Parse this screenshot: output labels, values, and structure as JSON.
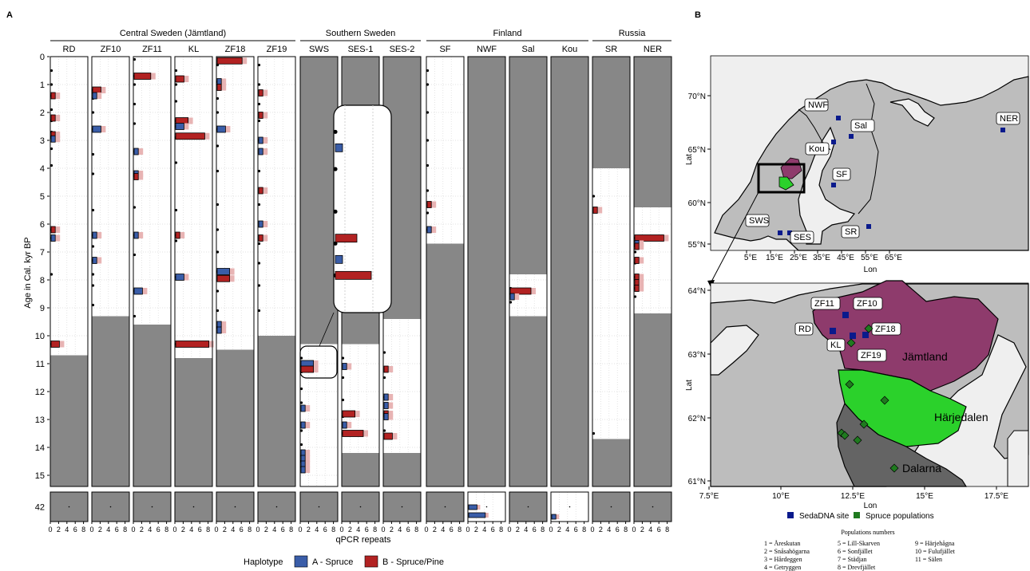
{
  "chart_data": [
    {
      "type": "bar",
      "panel_label": "A",
      "ylabel": "Age in Cal. kyr BP",
      "xlabel": "qPCR repeats",
      "y_ticks": [
        "0",
        "1",
        "2",
        "3",
        "4",
        "5",
        "6",
        "7",
        "8",
        "9",
        "10",
        "11",
        "12",
        "13",
        "14",
        "15"
      ],
      "y_bottom_tick": "42",
      "x_ticks": [
        "0",
        "2",
        "4",
        "6",
        "8"
      ],
      "regions": [
        {
          "name": "Central Sweden (Jämtland)",
          "sites": [
            "RD",
            "ZF10",
            "ZF11",
            "KL",
            "ZF18",
            "ZF19"
          ]
        },
        {
          "name": "Southern Sweden",
          "sites": [
            "SWS",
            "SES-1",
            "SES-2"
          ]
        },
        {
          "name": "Finland",
          "sites": [
            "SF",
            "NWF",
            "Sal",
            "Kou"
          ]
        },
        {
          "name": "Russia",
          "sites": [
            "SR",
            "NER"
          ]
        }
      ],
      "legend": {
        "title": "Haplotype",
        "items": [
          {
            "label": "A - Spruce",
            "color": "#3A5DA8"
          },
          {
            "label": "B - Spruce/Pine",
            "color": "#B22222"
          }
        ]
      },
      "colors": {
        "A": "#3A5DA8",
        "B": "#B22222",
        "no_data": "#878787",
        "ghost": "#E8B4B4"
      },
      "series": [
        {
          "site": "RD",
          "no_data_from": 10.7,
          "bottom_no_data": true,
          "samples": [
            0.5,
            1.0,
            1.4,
            1.9,
            2.3,
            2.7,
            2.9,
            3.3,
            3.9,
            6.2,
            6.5,
            7.8,
            10.3
          ],
          "bars": [
            {
              "age": 1.4,
              "hap": "B",
              "n": 1
            },
            {
              "age": 2.2,
              "hap": "B",
              "n": 1
            },
            {
              "age": 2.8,
              "hap": "B",
              "n": 1
            },
            {
              "age": 2.95,
              "hap": "A",
              "n": 1
            },
            {
              "age": 6.2,
              "hap": "B",
              "n": 1
            },
            {
              "age": 6.5,
              "hap": "A",
              "n": 1
            },
            {
              "age": 10.3,
              "hap": "B",
              "n": 2
            }
          ]
        },
        {
          "site": "ZF10",
          "no_data_from": 9.3,
          "bottom_no_data": true,
          "samples": [
            1.2,
            1.5,
            2.0,
            2.6,
            3.5,
            4.2,
            5.5,
            6.4,
            6.8,
            7.3,
            7.8,
            8.2,
            8.9
          ],
          "bars": [
            {
              "age": 1.2,
              "hap": "B",
              "n": 2
            },
            {
              "age": 1.4,
              "hap": "A",
              "n": 1
            },
            {
              "age": 2.6,
              "hap": "A",
              "n": 2
            },
            {
              "age": 6.4,
              "hap": "A",
              "n": 1
            },
            {
              "age": 7.3,
              "hap": "A",
              "n": 1
            }
          ]
        },
        {
          "site": "ZF11",
          "no_data_from": 9.6,
          "bottom_no_data": true,
          "samples": [
            0.1,
            0.7,
            1.0,
            1.7,
            2.4,
            3.4,
            4.2,
            5.4,
            6.4,
            7.1,
            8.4,
            9.3
          ],
          "bars": [
            {
              "age": 0.7,
              "hap": "B",
              "n": 4
            },
            {
              "age": 3.4,
              "hap": "A",
              "n": 1
            },
            {
              "age": 4.2,
              "hap": "A",
              "n": 1
            },
            {
              "age": 4.3,
              "hap": "B",
              "n": 1
            },
            {
              "age": 6.4,
              "hap": "A",
              "n": 1
            },
            {
              "age": 8.4,
              "hap": "A",
              "n": 2
            }
          ]
        },
        {
          "site": "KL",
          "no_data_from": 10.8,
          "bottom_no_data": true,
          "samples": [
            0.5,
            1.0,
            1.6,
            2.3,
            2.5,
            2.9,
            3.8,
            5.5,
            6.4,
            6.6,
            7.9,
            10.3
          ],
          "bars": [
            {
              "age": 0.8,
              "hap": "B",
              "n": 2
            },
            {
              "age": 2.3,
              "hap": "B",
              "n": 3
            },
            {
              "age": 2.5,
              "hap": "A",
              "n": 2
            },
            {
              "age": 2.85,
              "hap": "B",
              "n": 7
            },
            {
              "age": 6.4,
              "hap": "B",
              "n": 1
            },
            {
              "age": 7.9,
              "hap": "A",
              "n": 2
            },
            {
              "age": 10.3,
              "hap": "B",
              "n": 8
            }
          ]
        },
        {
          "site": "ZF18",
          "no_data_from": 10.5,
          "bottom_no_data": true,
          "samples": [
            0.3,
            0.9,
            1.5,
            2.0,
            2.6,
            3.2,
            4.1,
            5.3,
            6.2,
            7.0,
            7.7,
            8.4,
            9.1,
            9.7
          ],
          "bars": [
            {
              "age": 0.15,
              "hap": "B",
              "n": 6
            },
            {
              "age": 0.9,
              "hap": "A",
              "n": 1
            },
            {
              "age": 1.1,
              "hap": "B",
              "n": 1
            },
            {
              "age": 2.6,
              "hap": "A",
              "n": 2
            },
            {
              "age": 7.7,
              "hap": "A",
              "n": 3
            },
            {
              "age": 7.95,
              "hap": "B",
              "n": 3
            },
            {
              "age": 9.6,
              "hap": "A",
              "n": 1
            },
            {
              "age": 9.8,
              "hap": "A",
              "n": 1
            }
          ]
        },
        {
          "site": "ZF19",
          "no_data_from": 10.0,
          "bottom_no_data": true,
          "samples": [
            0.3,
            1.0,
            1.7,
            2.3,
            3.0,
            4.1,
            5.3,
            6.7,
            7.4,
            8.2,
            9.1
          ],
          "bars": [
            {
              "age": 1.3,
              "hap": "B",
              "n": 1
            },
            {
              "age": 2.1,
              "hap": "B",
              "n": 1
            },
            {
              "age": 3.0,
              "hap": "A",
              "n": 1
            },
            {
              "age": 3.4,
              "hap": "A",
              "n": 1
            },
            {
              "age": 4.8,
              "hap": "B",
              "n": 1
            },
            {
              "age": 6.0,
              "hap": "A",
              "n": 1
            },
            {
              "age": 6.5,
              "hap": "B",
              "n": 1
            }
          ]
        },
        {
          "site": "SWS",
          "no_data_to": 10.3,
          "bottom_no_data": true,
          "samples": [
            10.8,
            11.3,
            11.9,
            12.4,
            13.4,
            13.9,
            14.5
          ],
          "bars": [
            {
              "age": 11.0,
              "hap": "A",
              "n": 3
            },
            {
              "age": 11.2,
              "hap": "B",
              "n": 3
            },
            {
              "age": 12.6,
              "hap": "A",
              "n": 1
            },
            {
              "age": 13.2,
              "hap": "A",
              "n": 1
            },
            {
              "age": 14.2,
              "hap": "A",
              "n": 1
            },
            {
              "age": 14.4,
              "hap": "A",
              "n": 1
            },
            {
              "age": 14.6,
              "hap": "A",
              "n": 1
            },
            {
              "age": 14.8,
              "hap": "A",
              "n": 1
            }
          ]
        },
        {
          "site": "SES-1",
          "no_data_to": 10.3,
          "no_data_from": 14.2,
          "bottom_no_data": true,
          "samples": [
            10.8,
            11.5,
            12.3,
            12.9,
            13.5
          ],
          "bars": [
            {
              "age": 11.1,
              "hap": "A",
              "n": 1
            },
            {
              "age": 12.8,
              "hap": "B",
              "n": 3
            },
            {
              "age": 13.2,
              "hap": "A",
              "n": 1
            },
            {
              "age": 13.5,
              "hap": "B",
              "n": 5
            }
          ]
        },
        {
          "site": "SES-2",
          "no_data_to": 9.4,
          "no_data_from": 14.2,
          "bottom_no_data": true,
          "samples": [
            10.6,
            11.5,
            12.2,
            12.8,
            13.4
          ],
          "bars": [
            {
              "age": 11.2,
              "hap": "B",
              "n": 1
            },
            {
              "age": 12.2,
              "hap": "A",
              "n": 1
            },
            {
              "age": 12.5,
              "hap": "A",
              "n": 1
            },
            {
              "age": 12.8,
              "hap": "B",
              "n": 1
            },
            {
              "age": 12.9,
              "hap": "A",
              "n": 1
            },
            {
              "age": 13.6,
              "hap": "B",
              "n": 2
            }
          ]
        },
        {
          "site": "SF",
          "no_data_from": 6.7,
          "bottom_no_data": true,
          "samples": [
            0.5,
            1.0,
            2.0,
            3.0,
            3.9,
            4.8,
            5.6,
            6.2
          ],
          "bars": [
            {
              "age": 5.3,
              "hap": "B",
              "n": 1
            },
            {
              "age": 6.2,
              "hap": "A",
              "n": 1
            }
          ]
        },
        {
          "site": "NWF",
          "no_data_to": 15.4,
          "bottom_no_data": false,
          "samples": [],
          "bars": [
            {
              "age": 42.0,
              "hap": "A",
              "n": 2
            },
            {
              "age": 42.2,
              "hap": "A",
              "n": 4
            }
          ]
        },
        {
          "site": "Sal",
          "no_data_to": 7.8,
          "no_data_from": 9.3,
          "bottom_no_data": true,
          "samples": [
            8.3,
            8.8
          ],
          "bars": [
            {
              "age": 8.4,
              "hap": "B",
              "n": 5
            },
            {
              "age": 8.6,
              "hap": "A",
              "n": 1
            }
          ]
        },
        {
          "site": "Kou",
          "no_data_to": 15.4,
          "bottom_no_data": false,
          "samples": [],
          "bars": [
            {
              "age": 42.3,
              "hap": "A",
              "n": 1
            }
          ]
        },
        {
          "site": "SR",
          "no_data_to": 4.0,
          "no_data_from": 13.7,
          "bottom_no_data": true,
          "samples": [
            5.0,
            13.5
          ],
          "bars": [
            {
              "age": 5.5,
              "hap": "B",
              "n": 1
            }
          ]
        },
        {
          "site": "NER",
          "no_data_to": 5.4,
          "no_data_from": 9.2,
          "bottom_no_data": true,
          "samples": [
            6.5,
            7.0,
            7.4,
            7.9,
            8.3,
            8.6
          ],
          "bars": [
            {
              "age": 6.5,
              "hap": "B",
              "n": 7
            },
            {
              "age": 6.7,
              "hap": "A",
              "n": 1
            },
            {
              "age": 6.8,
              "hap": "B",
              "n": 1
            },
            {
              "age": 7.3,
              "hap": "B",
              "n": 1
            },
            {
              "age": 7.9,
              "hap": "B",
              "n": 1
            },
            {
              "age": 8.1,
              "hap": "B",
              "n": 1
            },
            {
              "age": 8.3,
              "hap": "B",
              "n": 1
            }
          ]
        }
      ]
    },
    {
      "type": "map",
      "panel_label": "B",
      "xlabel": "Lon",
      "ylabel": "Lat",
      "overview": {
        "x_ticks": [
          "5°E",
          "15°E",
          "25°E",
          "35°E",
          "45°E",
          "55°E",
          "65°E"
        ],
        "y_ticks": [
          "70°N",
          "65°N",
          "60°N",
          "55°N"
        ],
        "site_labels": [
          "NWF",
          "Sal",
          "Kou",
          "SF",
          "NER",
          "SWS",
          "SES",
          "SR"
        ]
      },
      "detail": {
        "x_ticks": [
          "7.5°E",
          "10°E",
          "12.5°E",
          "15°E",
          "17.5°E"
        ],
        "y_ticks": [
          "64°N",
          "63°N",
          "62°N",
          "61°N"
        ],
        "site_labels": [
          "ZF11",
          "ZF10",
          "RD",
          "ZF18",
          "KL",
          "ZF19"
        ],
        "region_labels": [
          "Jämtland",
          "Härjedalen",
          "Dalarna"
        ]
      },
      "legend": [
        {
          "label": "SedaDNA site",
          "color": "#0A1A8C"
        },
        {
          "label": "Spruce populations",
          "color": "#1F7A1F"
        }
      ],
      "population_title": "Populations numbers",
      "populations": [
        "1 = Åreskutan",
        "2 = Snåsahögarna",
        "3 = Hårdeggen",
        "4 = Getryggen",
        "5 = Lill-Skarven",
        "6 = Sonfjället",
        "7 = Städjan",
        "8 = Drevfjället",
        "9 = Härjehågna",
        "10 = Fulufjället",
        "11 = Sälen"
      ]
    }
  ]
}
